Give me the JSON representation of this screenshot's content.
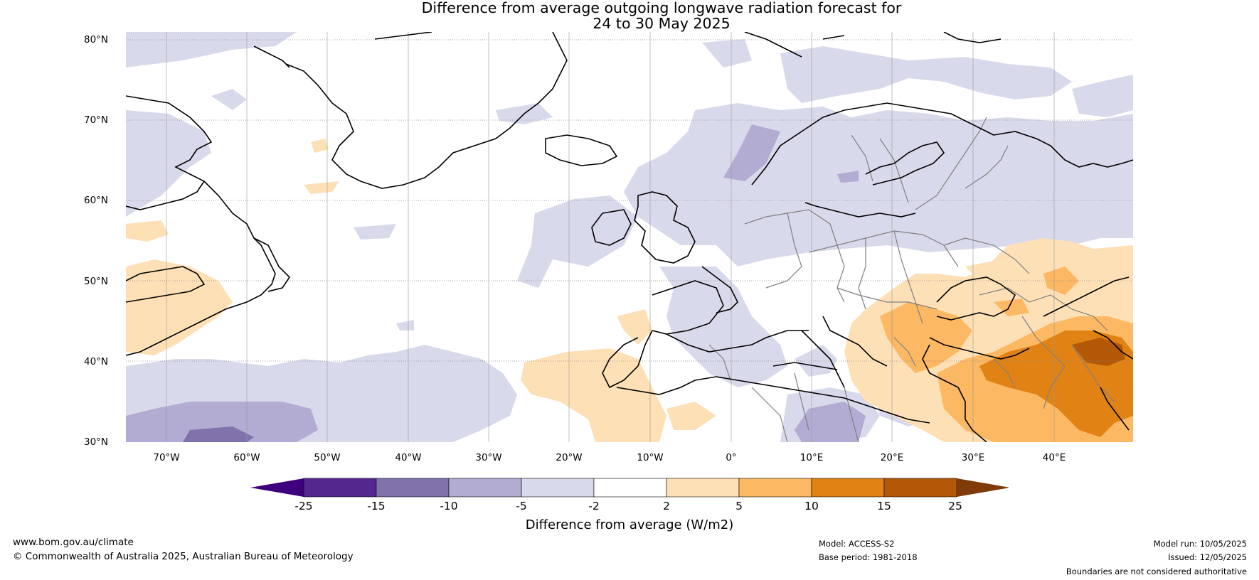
{
  "title_line1": "Difference from average outgoing longwave radiation forecast for",
  "title_line2": "24 to 30 May 2025",
  "map": {
    "latitude_labels": [
      "80°N",
      "70°N",
      "60°N",
      "50°N",
      "40°N",
      "30°N"
    ],
    "longitude_labels": [
      "70°W",
      "60°W",
      "50°W",
      "40°W",
      "30°W",
      "20°W",
      "10°W",
      "0°",
      "10°E",
      "20°E",
      "30°E",
      "40°E"
    ],
    "gridlines": "dotted",
    "colors": {
      "coast": "#000000",
      "borders": "#808080",
      "lakes": "#808080"
    }
  },
  "colorbar": {
    "label": "Difference from average (W/m2)",
    "ticks": [
      "-25",
      "-15",
      "-10",
      "-5",
      "-2",
      "2",
      "5",
      "10",
      "15",
      "25"
    ],
    "colors": [
      "#3f007d",
      "#54278f",
      "#8073ac",
      "#b2abd2",
      "#d8daeb",
      "#ffffff",
      "#fee0b6",
      "#fdb863",
      "#e08214",
      "#b35806",
      "#7f3b08"
    ]
  },
  "footer": {
    "url": "www.bom.gov.au/climate",
    "copyright": "© Commonwealth of Australia 2025, Australian Bureau of Meteorology",
    "model": "Model: ACCESS-S2",
    "base_period": "Base period: 1981-2018",
    "model_run": "Model run: 10/05/2025",
    "issued": "Issued: 12/05/2025",
    "disclaimer": "Boundaries are not considered authoritative"
  }
}
